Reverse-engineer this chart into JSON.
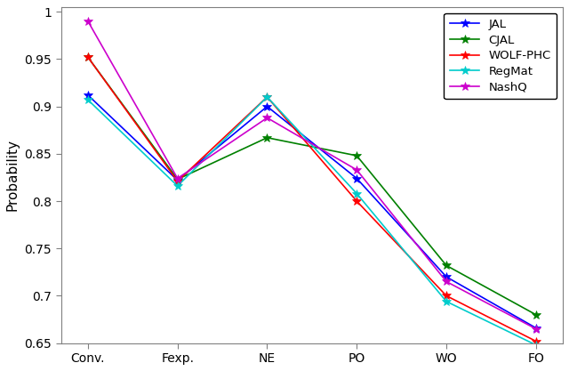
{
  "x_labels": [
    "Conv.",
    "Fexp.",
    "NE",
    "PO",
    "WO",
    "FO"
  ],
  "series": {
    "JAL": {
      "color": "#0000FF",
      "values": [
        0.912,
        0.822,
        0.9,
        0.824,
        0.72,
        0.666
      ]
    },
    "CJAL": {
      "color": "#008000",
      "values": [
        0.952,
        0.823,
        0.867,
        0.848,
        0.732,
        0.68
      ]
    },
    "WOLF-PHC": {
      "color": "#FF0000",
      "values": [
        0.952,
        0.821,
        0.91,
        0.8,
        0.7,
        0.652
      ]
    },
    "RegMat": {
      "color": "#00CCCC",
      "values": [
        0.907,
        0.816,
        0.91,
        0.808,
        0.694,
        0.648
      ]
    },
    "NashQ": {
      "color": "#CC00CC",
      "values": [
        0.99,
        0.824,
        0.888,
        0.833,
        0.715,
        0.665
      ]
    }
  },
  "ylabel": "Probability",
  "ylim": [
    0.65,
    1.005
  ],
  "ytick_values": [
    0.65,
    0.7,
    0.75,
    0.8,
    0.85,
    0.9,
    0.95,
    1.0
  ],
  "ytick_labels": [
    "0.65",
    "0.7",
    "0.75",
    "0.8",
    "0.85",
    "0.9",
    "0.95",
    "1"
  ],
  "legend_loc": "upper right",
  "marker": "*",
  "markersize": 7,
  "linewidth": 1.2,
  "background_color": "#FFFFFF",
  "axes_color": "#808080",
  "tick_fontsize": 10,
  "label_fontsize": 11
}
